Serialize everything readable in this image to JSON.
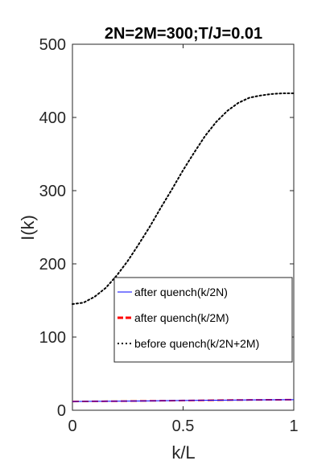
{
  "chart_data": {
    "type": "line",
    "title": "2N=2M=300;T/J=0.01",
    "xlabel": "k/L",
    "ylabel": "I(k)",
    "xlim": [
      0,
      1
    ],
    "ylim": [
      0,
      500
    ],
    "xticks": [
      0,
      0.5,
      1
    ],
    "xtick_labels": [
      "0",
      "0.5",
      "1"
    ],
    "yticks": [
      0,
      100,
      200,
      300,
      400,
      500
    ],
    "ytick_labels": [
      "0",
      "100",
      "200",
      "300",
      "400",
      "500"
    ],
    "grid": false,
    "legend_position": "lower-right",
    "series": [
      {
        "name": "after quench(k/2N)",
        "color": "#0000ff",
        "style": "solid",
        "x": [
          0,
          0.1,
          0.2,
          0.3,
          0.4,
          0.5,
          0.6,
          0.7,
          0.8,
          0.9,
          1.0
        ],
        "y": [
          12,
          12.2,
          12.4,
          12.7,
          13,
          13.3,
          13.6,
          13.9,
          14.1,
          14.3,
          14.4
        ]
      },
      {
        "name": "after quench(k/2M)",
        "color": "#ff0000",
        "style": "dashed",
        "x": [
          0,
          0.1,
          0.2,
          0.3,
          0.4,
          0.5,
          0.6,
          0.7,
          0.8,
          0.9,
          1.0
        ],
        "y": [
          12,
          12.2,
          12.4,
          12.7,
          13,
          13.3,
          13.6,
          13.9,
          14.1,
          14.3,
          14.4
        ]
      },
      {
        "name": "before quench(k/2N+2M)",
        "color": "#000000",
        "style": "dotted",
        "x": [
          0,
          0.05,
          0.1,
          0.15,
          0.2,
          0.25,
          0.3,
          0.35,
          0.4,
          0.45,
          0.5,
          0.55,
          0.6,
          0.65,
          0.7,
          0.75,
          0.8,
          0.85,
          0.9,
          0.95,
          1.0
        ],
        "y": [
          145,
          147,
          155,
          167,
          184,
          204,
          227,
          251,
          277,
          302,
          328,
          352,
          375,
          394,
          409,
          420,
          427,
          430,
          432,
          433,
          433
        ]
      }
    ]
  }
}
